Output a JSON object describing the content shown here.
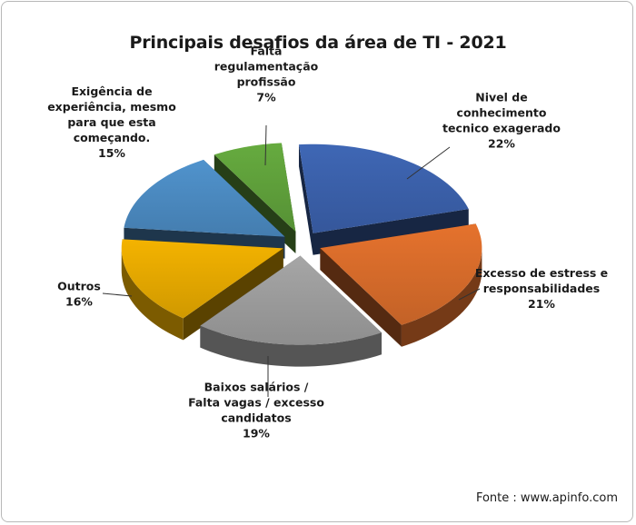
{
  "chart_data": {
    "type": "pie",
    "title": "Principais  desafios da área de TI - 2021",
    "slices": [
      {
        "label_lines": [
          "Nivel de",
          "conhecimento",
          "tecnico exagerado"
        ],
        "percent_label": "22%",
        "value": 22,
        "color": "#3A5FA8"
      },
      {
        "label_lines": [
          "Excesso de estress e",
          "responsabilidades"
        ],
        "percent_label": "21%",
        "value": 21,
        "color": "#D46A2A"
      },
      {
        "label_lines": [
          "Baixos salários /",
          "Falta vagas / excesso",
          "candidatos"
        ],
        "percent_label": "19%",
        "value": 19,
        "color": "#9A9A9A"
      },
      {
        "label_lines": [
          "Outros"
        ],
        "percent_label": "16%",
        "value": 16,
        "color": "#E2A600"
      },
      {
        "label_lines": [
          "Exigência de",
          "experiência, mesmo",
          "para que esta",
          "começando."
        ],
        "percent_label": "15%",
        "value": 15,
        "color": "#4A88BE"
      },
      {
        "label_lines": [
          "Falta",
          "regulamentação",
          "profissão"
        ],
        "percent_label": "7%",
        "value": 7,
        "color": "#5E9E3A"
      }
    ],
    "legend": "none"
  },
  "source": "Fonte : www.apinfo.com"
}
